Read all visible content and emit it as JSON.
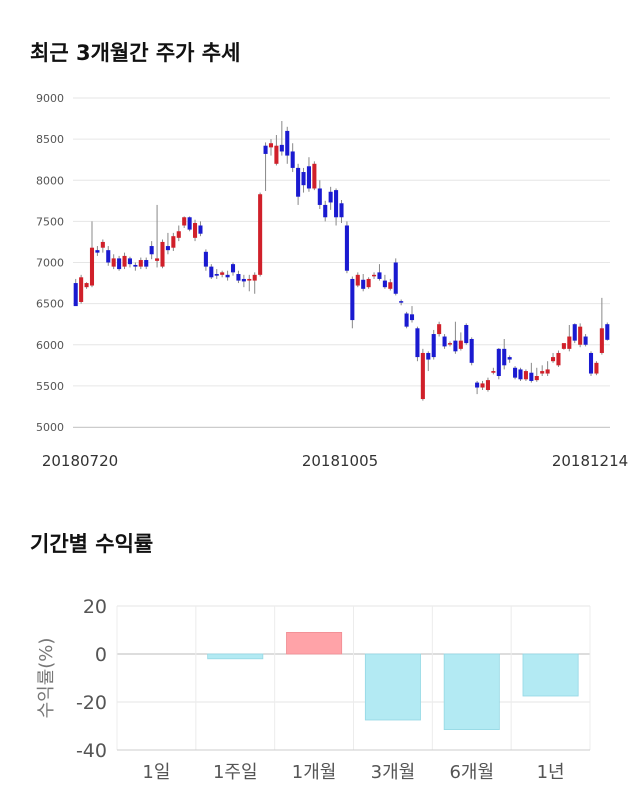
{
  "section1": {
    "title": "최근 3개월간 주가 추세"
  },
  "section2": {
    "title": "기간별 수익률"
  },
  "chart_data": [
    {
      "type": "candlestick",
      "title": "최근 3개월간 주가 추세",
      "ylim": [
        5000,
        9000
      ],
      "y_ticks": [
        "9000",
        "8500",
        "8000",
        "7500",
        "7000",
        "6500",
        "6000",
        "5500",
        "5000"
      ],
      "x_labels": [
        "20180720",
        "20181005",
        "20181214"
      ],
      "grid": true,
      "colors": {
        "up": "#d0202a",
        "down": "#1a1ad0",
        "wick": "#888888",
        "grid": "#e6e6e6"
      },
      "candles": [
        [
          6750,
          6470,
          6480,
          6800
        ],
        [
          6520,
          6820,
          6500,
          6850
        ],
        [
          6700,
          6750,
          6680,
          6760
        ],
        [
          6720,
          7180,
          6700,
          7500
        ],
        [
          7150,
          7120,
          7080,
          7200
        ],
        [
          7180,
          7250,
          7120,
          7280
        ],
        [
          7150,
          7000,
          6960,
          7200
        ],
        [
          6950,
          7050,
          6920,
          7100
        ],
        [
          7050,
          6920,
          6900,
          7080
        ],
        [
          6950,
          7080,
          6920,
          7120
        ],
        [
          7050,
          6980,
          6940,
          7070
        ],
        [
          6970,
          6950,
          6900,
          7000
        ],
        [
          6950,
          7030,
          6920,
          7060
        ],
        [
          7030,
          6950,
          6920,
          7060
        ],
        [
          7200,
          7100,
          7040,
          7260
        ],
        [
          7020,
          7050,
          6940,
          7700
        ],
        [
          6950,
          7250,
          6930,
          7280
        ],
        [
          7200,
          7150,
          7100,
          7360
        ],
        [
          7180,
          7320,
          7140,
          7360
        ],
        [
          7300,
          7380,
          7260,
          7450
        ],
        [
          7450,
          7550,
          7420,
          7560
        ],
        [
          7550,
          7400,
          7380,
          7560
        ],
        [
          7300,
          7480,
          7260,
          7520
        ],
        [
          7450,
          7350,
          7320,
          7500
        ],
        [
          7130,
          6950,
          6900,
          7160
        ],
        [
          6950,
          6820,
          6800,
          6980
        ],
        [
          6860,
          6840,
          6800,
          6920
        ],
        [
          6850,
          6880,
          6820,
          6900
        ],
        [
          6850,
          6820,
          6780,
          6900
        ],
        [
          6980,
          6880,
          6840,
          7000
        ],
        [
          6860,
          6780,
          6750,
          6900
        ],
        [
          6800,
          6770,
          6700,
          6850
        ],
        [
          6780,
          6800,
          6650,
          6850
        ],
        [
          6780,
          6850,
          6620,
          6880
        ],
        [
          6850,
          7830,
          6830,
          7850
        ],
        [
          8420,
          8320,
          7870,
          8460
        ],
        [
          8400,
          8450,
          8300,
          8500
        ],
        [
          8200,
          8420,
          8180,
          8550
        ],
        [
          8430,
          8350,
          8300,
          8720
        ],
        [
          8600,
          8300,
          8200,
          8650
        ],
        [
          8350,
          8150,
          8100,
          8450
        ],
        [
          8150,
          7800,
          7700,
          8200
        ],
        [
          8100,
          7940,
          7850,
          8150
        ],
        [
          8170,
          7900,
          7860,
          8280
        ],
        [
          7900,
          8200,
          7880,
          8230
        ],
        [
          7900,
          7700,
          7650,
          8000
        ],
        [
          7700,
          7550,
          7500,
          7750
        ],
        [
          7860,
          7730,
          7640,
          7920
        ],
        [
          7880,
          7550,
          7450,
          7900
        ],
        [
          7720,
          7550,
          7480,
          7760
        ],
        [
          7450,
          6900,
          6870,
          7500
        ],
        [
          6800,
          6300,
          6200,
          6830
        ],
        [
          6720,
          6850,
          6700,
          6880
        ],
        [
          6790,
          6680,
          6650,
          6860
        ],
        [
          6700,
          6800,
          6680,
          6820
        ],
        [
          6840,
          6850,
          6800,
          6880
        ],
        [
          6880,
          6800,
          6780,
          6980
        ],
        [
          6780,
          6700,
          6680,
          6850
        ],
        [
          6680,
          6760,
          6660,
          6800
        ],
        [
          7000,
          6620,
          6600,
          7050
        ],
        [
          6530,
          6520,
          6480,
          6550
        ],
        [
          6380,
          6220,
          6200,
          6400
        ],
        [
          6370,
          6300,
          6270,
          6470
        ],
        [
          6200,
          5850,
          5800,
          6220
        ],
        [
          5340,
          5900,
          5320,
          5950
        ],
        [
          5900,
          5820,
          5680,
          5920
        ],
        [
          6130,
          5850,
          5820,
          6180
        ],
        [
          6130,
          6250,
          6100,
          6280
        ],
        [
          6100,
          5980,
          5950,
          6130
        ],
        [
          6010,
          6020,
          5980,
          6040
        ],
        [
          6050,
          5920,
          5890,
          6280
        ],
        [
          5950,
          6050,
          5930,
          6150
        ],
        [
          6240,
          6020,
          6000,
          6260
        ],
        [
          6070,
          5780,
          5750,
          6090
        ],
        [
          5540,
          5480,
          5400,
          5560
        ],
        [
          5480,
          5530,
          5450,
          5560
        ],
        [
          5450,
          5570,
          5430,
          5600
        ],
        [
          5660,
          5680,
          5640,
          5720
        ],
        [
          5950,
          5620,
          5580,
          5960
        ],
        [
          5950,
          5750,
          5700,
          6070
        ],
        [
          5850,
          5820,
          5780,
          5870
        ],
        [
          5720,
          5600,
          5580,
          5740
        ],
        [
          5700,
          5580,
          5560,
          5720
        ],
        [
          5580,
          5680,
          5560,
          5700
        ],
        [
          5660,
          5560,
          5540,
          5780
        ],
        [
          5570,
          5620,
          5550,
          5720
        ],
        [
          5650,
          5680,
          5620,
          5750
        ],
        [
          5650,
          5700,
          5620,
          5800
        ],
        [
          5800,
          5850,
          5780,
          5900
        ],
        [
          5750,
          5900,
          5730,
          5930
        ],
        [
          5950,
          6020,
          5940,
          6000
        ],
        [
          5950,
          6100,
          5920,
          6240
        ],
        [
          6250,
          6050,
          6020,
          6260
        ],
        [
          6000,
          6220,
          5970,
          6260
        ],
        [
          6100,
          6000,
          5980,
          6130
        ],
        [
          5900,
          5650,
          5620,
          5920
        ],
        [
          5650,
          5780,
          5630,
          5800
        ],
        [
          5900,
          6200,
          5880,
          6570
        ],
        [
          6250,
          6060,
          6050,
          6270
        ]
      ]
    },
    {
      "type": "bar",
      "title": "기간별 수익률",
      "ylabel": "수익률(%)",
      "ylim": [
        -40,
        20
      ],
      "y_ticks": [
        "20",
        "0",
        "-20",
        "-40"
      ],
      "grid": true,
      "categories": [
        "1일",
        "1주일",
        "1개월",
        "3개월",
        "6개월",
        "1년"
      ],
      "values": [
        0,
        -2.0,
        9.0,
        -27.5,
        -31.5,
        -17.5
      ],
      "colors": {
        "positive": "#ffa3a8",
        "negative": "#b3eaf3"
      }
    }
  ]
}
